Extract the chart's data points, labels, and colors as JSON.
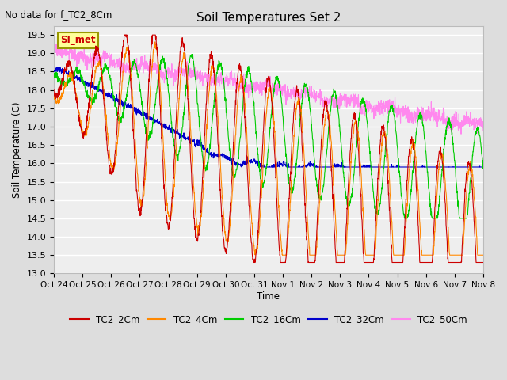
{
  "title": "Soil Temperatures Set 2",
  "subtitle": "No data for f_TC2_8Cm",
  "ylabel": "Soil Temperature (C)",
  "xlabel": "Time",
  "ylim": [
    13.0,
    19.75
  ],
  "yticks": [
    13.0,
    13.5,
    14.0,
    14.5,
    15.0,
    15.5,
    16.0,
    16.5,
    17.0,
    17.5,
    18.0,
    18.5,
    19.0,
    19.5
  ],
  "xtick_labels": [
    "Oct 24",
    "Oct 25",
    "Oct 26",
    "Oct 27",
    "Oct 28",
    "Oct 29",
    "Oct 30",
    "Oct 31",
    "Nov 1",
    "Nov 2",
    "Nov 3",
    "Nov 4",
    "Nov 5",
    "Nov 6",
    "Nov 7",
    "Nov 8"
  ],
  "colors": {
    "TC2_2Cm": "#cc0000",
    "TC2_4Cm": "#ff8800",
    "TC2_16Cm": "#00cc00",
    "TC2_32Cm": "#0000cc",
    "TC2_50Cm": "#ff88ee"
  },
  "si_met_label": "SI_met",
  "si_met_color": "#cc0000",
  "si_met_bg": "#ffff99",
  "si_met_border": "#999900",
  "background_color": "#dddddd",
  "plot_bg": "#eeeeee",
  "grid_color": "#ffffff",
  "n_points": 2000
}
